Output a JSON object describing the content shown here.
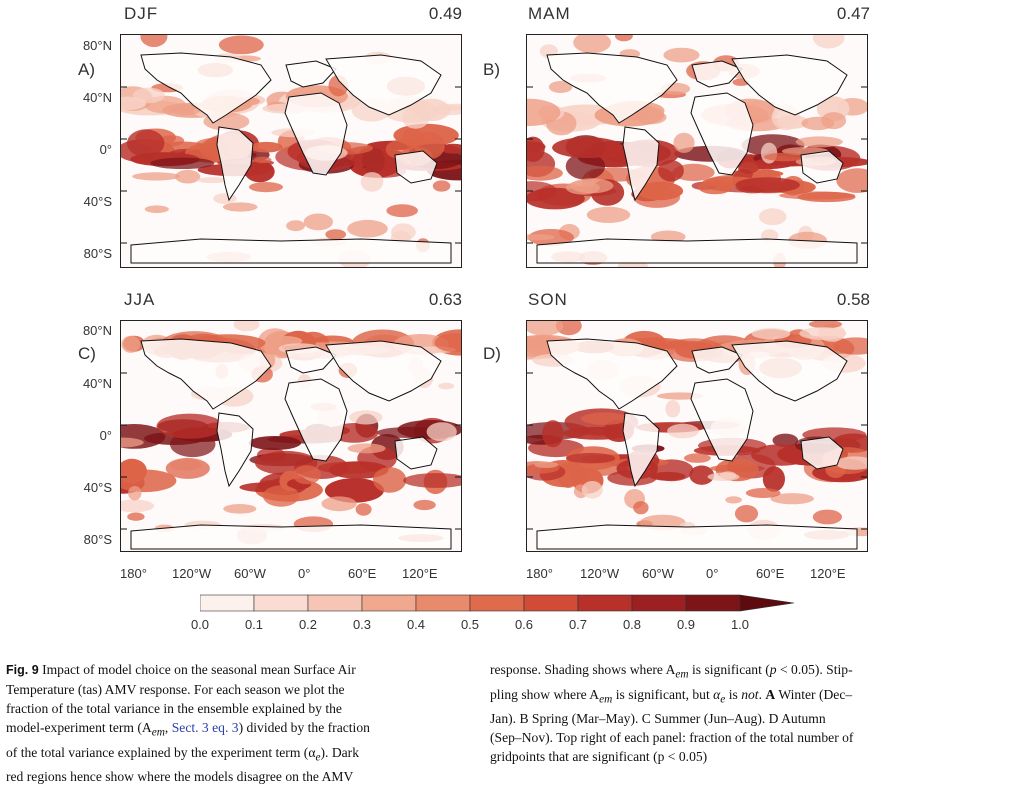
{
  "panels": [
    {
      "id": "A",
      "season": "DJF",
      "label": "A)",
      "fraction": "0.49"
    },
    {
      "id": "B",
      "season": "MAM",
      "label": "B)",
      "fraction": "0.47"
    },
    {
      "id": "C",
      "season": "JJA",
      "label": "C)",
      "fraction": "0.63"
    },
    {
      "id": "D",
      "season": "SON",
      "label": "D)",
      "fraction": "0.58"
    }
  ],
  "lat_labels": [
    "80°N",
    "40°N",
    "0°",
    "40°S",
    "80°S"
  ],
  "lon_labels": [
    "180°",
    "120°W",
    "60°W",
    "0°",
    "60°E",
    "120°E"
  ],
  "colorbar": {
    "ticks": [
      "0.0",
      "0.1",
      "0.2",
      "0.3",
      "0.4",
      "0.5",
      "0.6",
      "0.7",
      "0.8",
      "0.9",
      "1.0"
    ],
    "colors": [
      "#fdf1ee",
      "#fbdcd3",
      "#f6c5b6",
      "#f0a88f",
      "#ea8a6c",
      "#e06a4c",
      "#d24b36",
      "#b8302a",
      "#9c1f22",
      "#7d1418",
      "#5e0b0f"
    ]
  },
  "caption": {
    "fig_label": "Fig. 9",
    "left_lines": [
      "Impact of model choice on the seasonal mean Surface Air",
      "Temperature (tas) AMV response. For each season we plot the",
      "fraction of the total variance in the ensemble explained by the",
      "model-experiment term (A",
      "of the total variance explained by the experiment term (α",
      "red regions hence show where the models disagree on the AMV"
    ],
    "sect_ref": "Sect. 3",
    "eq_ref": "eq. 3",
    "right_lines": [
      "response. Shading shows where A",
      "pling show where A",
      "Jan). B Spring (Mar–May). C Summer (Jun–Aug). D Autumn",
      "(Sep–Nov). Top right of each panel: fraction of the total number of",
      "gridpoints that are significant (p < 0.05)"
    ]
  }
}
